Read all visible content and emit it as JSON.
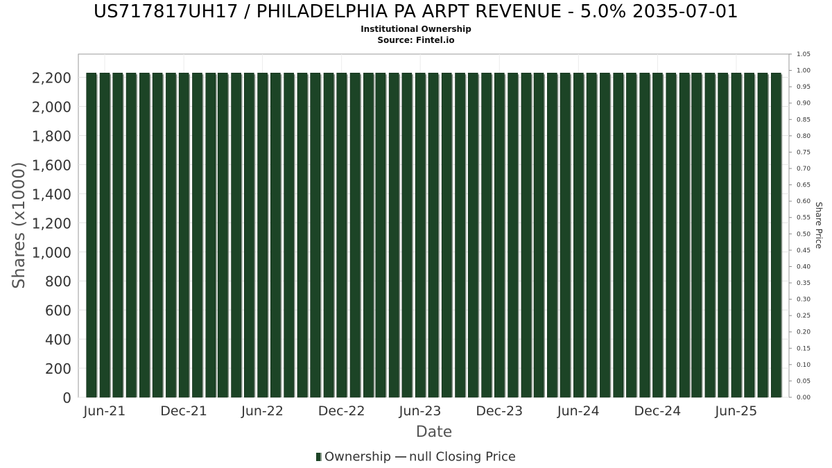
{
  "chart_data": {
    "type": "bar",
    "title": "US717817UH17 / PHILADELPHIA PA ARPT REVENUE - 5.0% 2035-07-01",
    "subtitle": "Institutional Ownership",
    "source": "Source: Fintel.io",
    "xlabel": "Date",
    "ylabel": "Shares (x1000)",
    "y2label": "Share Price",
    "ylim": [
      0,
      2360
    ],
    "y2lim": [
      0,
      1.05
    ],
    "xlim": [
      "2021-04-01",
      "2025-10-01"
    ],
    "grid": true,
    "legend_position": "bottom",
    "yticks": [
      "0",
      "200",
      "400",
      "600",
      "800",
      "1,000",
      "1,200",
      "1,400",
      "1,600",
      "1,800",
      "2,000",
      "2,200"
    ],
    "ytick_values": [
      0,
      200,
      400,
      600,
      800,
      1000,
      1200,
      1400,
      1600,
      1800,
      2000,
      2200
    ],
    "y2ticks": [
      "0.00",
      "0.05",
      "0.10",
      "0.15",
      "0.20",
      "0.25",
      "0.30",
      "0.35",
      "0.40",
      "0.45",
      "0.50",
      "0.55",
      "0.60",
      "0.65",
      "0.70",
      "0.75",
      "0.80",
      "0.85",
      "0.90",
      "0.95",
      "1.00",
      "1.05"
    ],
    "xticks": [
      "Jun-21",
      "Dec-21",
      "Jun-22",
      "Dec-22",
      "Jun-23",
      "Dec-23",
      "Jun-24",
      "Dec-24",
      "Jun-25"
    ],
    "xtick_dates": [
      "2021-06-01",
      "2021-12-01",
      "2022-06-01",
      "2022-12-01",
      "2023-06-01",
      "2023-12-01",
      "2024-06-01",
      "2024-12-01",
      "2025-06-01"
    ],
    "series": [
      {
        "name": "Ownership",
        "color": "#1c4426",
        "x": [
          "2021-05-01",
          "2021-06-01",
          "2021-07-01",
          "2021-08-01",
          "2021-09-01",
          "2021-10-01",
          "2021-11-01",
          "2021-12-01",
          "2022-01-01",
          "2022-02-01",
          "2022-03-01",
          "2022-04-01",
          "2022-05-01",
          "2022-06-01",
          "2022-07-01",
          "2022-08-01",
          "2022-09-01",
          "2022-10-01",
          "2022-11-01",
          "2022-12-01",
          "2023-01-01",
          "2023-02-01",
          "2023-03-01",
          "2023-04-01",
          "2023-05-01",
          "2023-06-01",
          "2023-07-01",
          "2023-08-01",
          "2023-09-01",
          "2023-10-01",
          "2023-11-01",
          "2023-12-01",
          "2024-01-01",
          "2024-02-01",
          "2024-03-01",
          "2024-04-01",
          "2024-05-01",
          "2024-06-01",
          "2024-07-01",
          "2024-08-01",
          "2024-09-01",
          "2024-10-01",
          "2024-11-01",
          "2024-12-01",
          "2025-01-01",
          "2025-02-01",
          "2025-03-01",
          "2025-04-01",
          "2025-05-01",
          "2025-06-01",
          "2025-07-01",
          "2025-08-01",
          "2025-09-01"
        ],
        "values": [
          2230,
          2230,
          2230,
          2230,
          2230,
          2230,
          2230,
          2230,
          2230,
          2230,
          2230,
          2230,
          2230,
          2230,
          2230,
          2230,
          2230,
          2230,
          2230,
          2230,
          2230,
          2230,
          2230,
          2230,
          2230,
          2230,
          2230,
          2230,
          2230,
          2230,
          2230,
          2230,
          2230,
          2230,
          2230,
          2230,
          2230,
          2230,
          2230,
          2230,
          2230,
          2230,
          2230,
          2230,
          2230,
          2230,
          2230,
          2230,
          2230,
          2230,
          2230,
          2230,
          2230
        ]
      },
      {
        "name": "null Closing Price",
        "color": "#555555",
        "values": []
      }
    ]
  }
}
